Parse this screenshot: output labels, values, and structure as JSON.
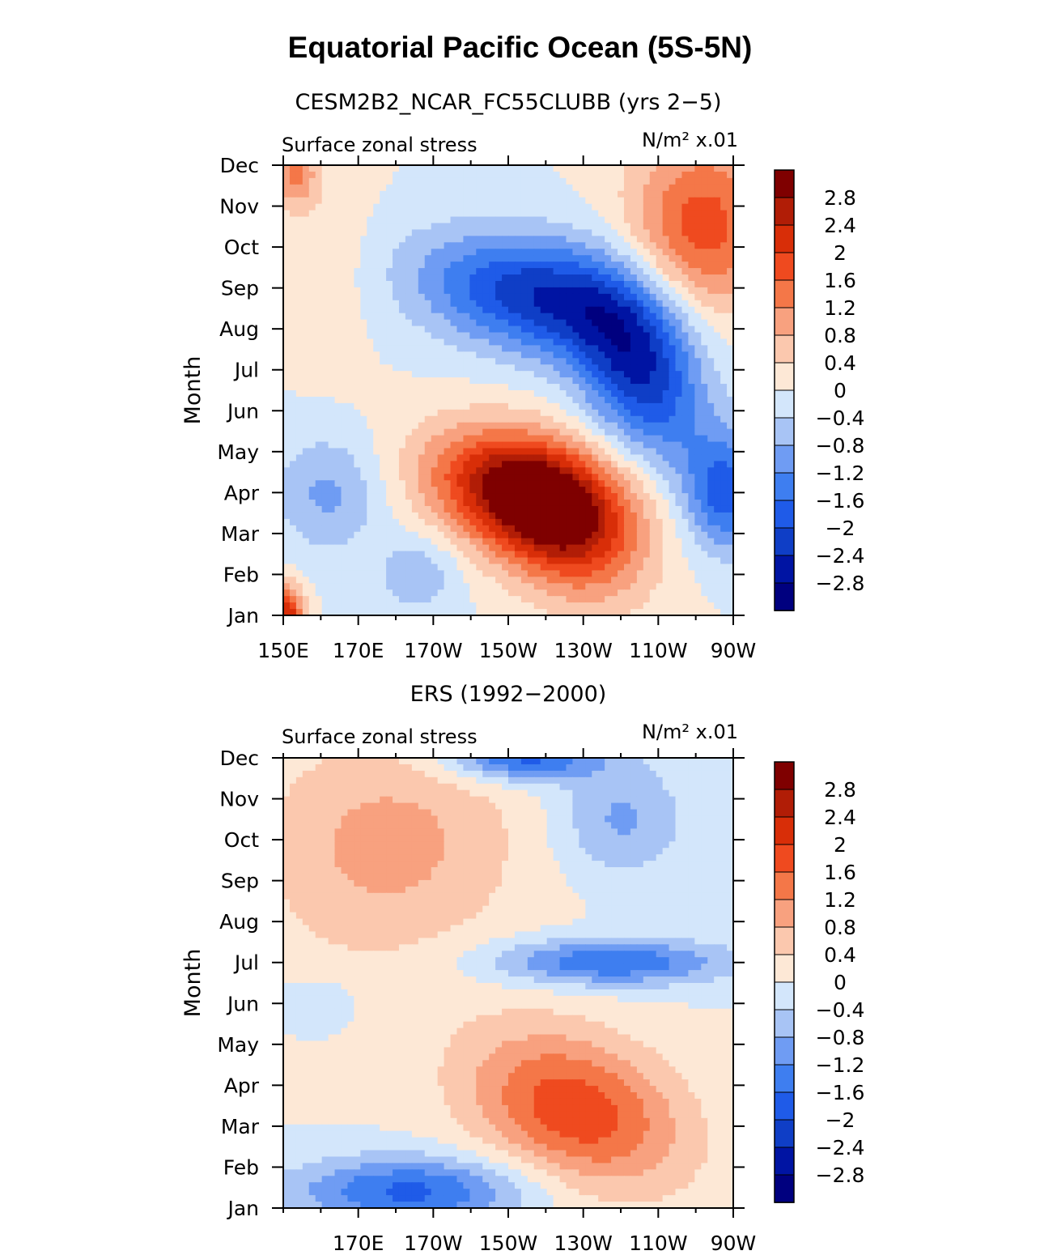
{
  "title": "Equatorial Pacific Ocean (5S-5N)",
  "chart_data": [
    {
      "type": "heatmap",
      "subtitle": "CESM2B2_NCAR_FC55CLUBB (yrs 2−5)",
      "left_string": "Surface zonal stress",
      "right_string": "N/m² x.01",
      "xlabel": "",
      "ylabel": "Month",
      "x_ticks": [
        150,
        170,
        190,
        210,
        230,
        250,
        270
      ],
      "x_tick_labels": [
        "150E",
        "170E",
        "170W",
        "150W",
        "130W",
        "110W",
        "90W"
      ],
      "xlim": [
        150,
        270
      ],
      "y_tick_labels": [
        "Jan",
        "Feb",
        "Mar",
        "Apr",
        "May",
        "Jun",
        "Jul",
        "Aug",
        "Sep",
        "Oct",
        "Nov",
        "Dec"
      ],
      "ylim": [
        1,
        12
      ],
      "features": [
        {
          "x": 215,
          "y": 4.0,
          "a": 3.0,
          "sx": 18,
          "sy": 1.0,
          "tilt": -0.3
        },
        {
          "x": 225,
          "y": 3.0,
          "a": 1.6,
          "sx": 14,
          "sy": 1.2,
          "tilt": -0.4
        },
        {
          "x": 218,
          "y": 8.8,
          "a": -2.3,
          "sx": 22,
          "sy": 1.0,
          "tilt": -0.3
        },
        {
          "x": 245,
          "y": 7.0,
          "a": -2.3,
          "sx": 12,
          "sy": 1.4,
          "tilt": -0.5
        },
        {
          "x": 262,
          "y": 10.5,
          "a": 1.8,
          "sx": 14,
          "sy": 1.6,
          "tilt": 0
        },
        {
          "x": 268,
          "y": 4.0,
          "a": -1.8,
          "sx": 8,
          "sy": 1.0,
          "tilt": 0
        },
        {
          "x": 163,
          "y": 10.0,
          "a": 0.3,
          "sx": 8,
          "sy": 2.0,
          "tilt": 0
        },
        {
          "x": 162,
          "y": 4.0,
          "a": -0.9,
          "sx": 10,
          "sy": 1.0,
          "tilt": 0
        },
        {
          "x": 186,
          "y": 2.0,
          "a": -0.7,
          "sx": 8,
          "sy": 0.7,
          "tilt": 0
        },
        {
          "x": 151,
          "y": 1.0,
          "a": 2.4,
          "sx": 3,
          "sy": 0.5,
          "tilt": 0
        },
        {
          "x": 153,
          "y": 11.8,
          "a": 1.3,
          "sx": 4,
          "sy": 0.6,
          "tilt": 0
        }
      ]
    },
    {
      "type": "heatmap",
      "subtitle": "ERS (1992−2000)",
      "left_string": "Surface zonal stress",
      "right_string": "N/m² x.01",
      "xlabel": "",
      "ylabel": "Month",
      "x_ticks": [
        170,
        190,
        210,
        230,
        250,
        270
      ],
      "x_tick_labels": [
        "170E",
        "170W",
        "150W",
        "130W",
        "110W",
        "90W"
      ],
      "xlim": [
        150,
        270
      ],
      "y_tick_labels": [
        "Jan",
        "Feb",
        "Mar",
        "Apr",
        "May",
        "Jun",
        "Jul",
        "Aug",
        "Sep",
        "Oct",
        "Nov",
        "Dec"
      ],
      "ylim": [
        1,
        12
      ],
      "features": [
        {
          "x": 228,
          "y": 3.4,
          "a": 1.9,
          "sx": 20,
          "sy": 1.3,
          "tilt": -0.4
        },
        {
          "x": 184,
          "y": 1.4,
          "a": -1.7,
          "sx": 22,
          "sy": 0.6,
          "tilt": 0
        },
        {
          "x": 237,
          "y": 7.0,
          "a": -1.6,
          "sx": 22,
          "sy": 0.4,
          "tilt": 0
        },
        {
          "x": 214,
          "y": 12.0,
          "a": -1.8,
          "sx": 14,
          "sy": 0.4,
          "tilt": 0
        },
        {
          "x": 240,
          "y": 10.5,
          "a": -0.9,
          "sx": 12,
          "sy": 1.0,
          "tilt": 0
        },
        {
          "x": 180,
          "y": 10.0,
          "a": 0.8,
          "sx": 25,
          "sy": 1.8,
          "tilt": 0
        },
        {
          "x": 160,
          "y": 6.0,
          "a": -0.4,
          "sx": 8,
          "sy": 0.5,
          "tilt": 0
        },
        {
          "x": 172,
          "y": 8.5,
          "a": 0.2,
          "sx": 20,
          "sy": 2.5,
          "tilt": 0
        }
      ]
    }
  ],
  "colorbar": {
    "labels": [
      "2.8",
      "2.4",
      "2",
      "1.6",
      "1.2",
      "0.8",
      "0.4",
      "0",
      "−0.4",
      "−0.8",
      "−1.2",
      "−1.6",
      "−2",
      "−2.4",
      "−2.8"
    ],
    "levels": [
      -2.8,
      -2.4,
      -2.0,
      -1.6,
      -1.2,
      -0.8,
      -0.4,
      0,
      0.4,
      0.8,
      1.2,
      1.6,
      2.0,
      2.4,
      2.8
    ],
    "colors": [
      "#00007f",
      "#0014a3",
      "#0f3ec6",
      "#1f5be8",
      "#3e7ef0",
      "#6f9cf3",
      "#a8c4f5",
      "#d3e6fb",
      "#fde8d6",
      "#fbc8ae",
      "#f8a17f",
      "#f47748",
      "#ef4a1f",
      "#d82e08",
      "#b11d06",
      "#7f0000"
    ]
  }
}
